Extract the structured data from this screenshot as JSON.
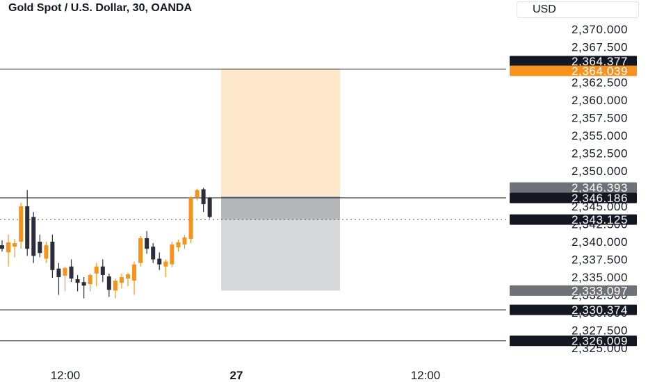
{
  "header": {
    "title": "Gold Spot / U.S. Dollar, 30, OANDA",
    "currency": "USD"
  },
  "colors": {
    "up": "#f7931a",
    "down": "#2b2e3a",
    "target_zone": "#fde8cc",
    "stop_zone": "#d6d8dc",
    "stop_zone_dark": "#b5b7bb",
    "label_dark": "#131722",
    "label_orange": "#f7931a",
    "label_gray": "#6f7177"
  },
  "axis": {
    "y_ticks": [
      "2,370.000",
      "2,367.500",
      "2,365.000",
      "2,362.500",
      "2,360.000",
      "2,357.500",
      "2,355.000",
      "2,352.500",
      "2,350.000",
      "2,347.500",
      "2,345.000",
      "2,342.500",
      "2,340.000",
      "2,337.500",
      "2,335.000",
      "2,332.500",
      "2,330.000",
      "2,327.500",
      "2,325.000"
    ],
    "x_ticks": [
      {
        "label": "12:00",
        "bold": false
      },
      {
        "label": "27",
        "bold": true
      },
      {
        "label": "12:00",
        "bold": false
      }
    ]
  },
  "price_labels": [
    {
      "text": "2,364.377",
      "style": "dark"
    },
    {
      "text": "2,364.039",
      "style": "orange"
    },
    {
      "text": "2,346.393",
      "style": "gray"
    },
    {
      "text": "2,346.186",
      "style": "dark"
    },
    {
      "text": "2,343.125",
      "style": "dark"
    },
    {
      "text": "2,333.097",
      "style": "gray"
    },
    {
      "text": "2,330.374",
      "style": "dark"
    },
    {
      "text": "2,326.009",
      "style": "dark"
    }
  ],
  "horizontal_lines": [
    {
      "price": 2364.377,
      "style": "solid"
    },
    {
      "price": 2346.186,
      "style": "solid"
    },
    {
      "price": 2343.125,
      "style": "dotted"
    },
    {
      "price": 2330.374,
      "style": "solid"
    },
    {
      "price": 2326.009,
      "style": "solid"
    }
  ],
  "position_tool": {
    "entry": 2346.393,
    "target": 2364.377,
    "stop": 2333.097,
    "current": 2343.125
  },
  "chart_data": {
    "type": "candlestick",
    "candles": [
      {
        "o": 2339.5,
        "h": 2340.2,
        "l": 2338.6,
        "c": 2339.0
      },
      {
        "o": 2338.5,
        "h": 2341.0,
        "l": 2336.5,
        "c": 2339.9
      },
      {
        "o": 2339.3,
        "h": 2340.4,
        "l": 2337.8,
        "c": 2339.8
      },
      {
        "o": 2340.0,
        "h": 2345.5,
        "l": 2339.0,
        "c": 2345.0
      },
      {
        "o": 2345.0,
        "h": 2347.3,
        "l": 2338.0,
        "c": 2339.0
      },
      {
        "o": 2343.5,
        "h": 2344.2,
        "l": 2337.0,
        "c": 2338.0
      },
      {
        "o": 2340.0,
        "h": 2341.0,
        "l": 2337.8,
        "c": 2338.4
      },
      {
        "o": 2337.6,
        "h": 2340.0,
        "l": 2337.0,
        "c": 2339.5
      },
      {
        "o": 2340.0,
        "h": 2341.0,
        "l": 2334.9,
        "c": 2336.0
      },
      {
        "o": 2336.2,
        "h": 2337.0,
        "l": 2332.5,
        "c": 2335.0
      },
      {
        "o": 2335.2,
        "h": 2336.5,
        "l": 2333.0,
        "c": 2336.3
      },
      {
        "o": 2336.5,
        "h": 2337.5,
        "l": 2334.3,
        "c": 2334.8
      },
      {
        "o": 2334.7,
        "h": 2335.3,
        "l": 2333.0,
        "c": 2334.2
      },
      {
        "o": 2334.3,
        "h": 2335.0,
        "l": 2332.0,
        "c": 2333.8
      },
      {
        "o": 2334.0,
        "h": 2335.5,
        "l": 2333.0,
        "c": 2335.3
      },
      {
        "o": 2335.5,
        "h": 2337.0,
        "l": 2333.7,
        "c": 2336.5
      },
      {
        "o": 2336.5,
        "h": 2337.5,
        "l": 2334.3,
        "c": 2335.3
      },
      {
        "o": 2335.1,
        "h": 2335.5,
        "l": 2332.2,
        "c": 2333.2
      },
      {
        "o": 2333.1,
        "h": 2334.8,
        "l": 2332.0,
        "c": 2334.5
      },
      {
        "o": 2334.2,
        "h": 2335.5,
        "l": 2333.4,
        "c": 2335.0
      },
      {
        "o": 2334.8,
        "h": 2335.6,
        "l": 2333.7,
        "c": 2335.4
      },
      {
        "o": 2334.5,
        "h": 2337.2,
        "l": 2332.5,
        "c": 2336.8
      },
      {
        "o": 2337.0,
        "h": 2340.8,
        "l": 2336.5,
        "c": 2340.5
      },
      {
        "o": 2340.5,
        "h": 2341.5,
        "l": 2338.3,
        "c": 2339.0
      },
      {
        "o": 2339.3,
        "h": 2339.8,
        "l": 2337.0,
        "c": 2337.5
      },
      {
        "o": 2337.6,
        "h": 2338.5,
        "l": 2336.0,
        "c": 2336.8
      },
      {
        "o": 2336.5,
        "h": 2337.5,
        "l": 2335.0,
        "c": 2337.2
      },
      {
        "o": 2336.8,
        "h": 2340.0,
        "l": 2336.4,
        "c": 2339.6
      },
      {
        "o": 2339.2,
        "h": 2340.3,
        "l": 2338.6,
        "c": 2339.9
      },
      {
        "o": 2339.6,
        "h": 2340.9,
        "l": 2339.0,
        "c": 2340.6
      },
      {
        "o": 2340.4,
        "h": 2346.4,
        "l": 2339.8,
        "c": 2346.2
      },
      {
        "o": 2346.2,
        "h": 2347.5,
        "l": 2345.8,
        "c": 2347.3
      },
      {
        "o": 2347.4,
        "h": 2347.6,
        "l": 2344.2,
        "c": 2345.3
      },
      {
        "o": 2346.2,
        "h": 2346.3,
        "l": 2343.3,
        "c": 2343.5
      }
    ]
  }
}
